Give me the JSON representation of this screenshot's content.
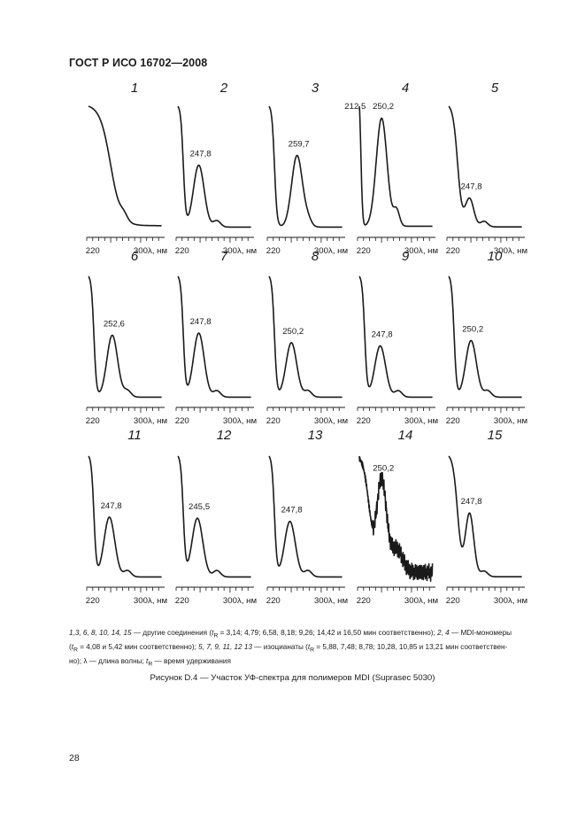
{
  "header": "ГОСТ Р ИСО 16702—2008",
  "axis": {
    "tick_label_220": "220",
    "tick_label_300": "300",
    "unit_label": "λ, нм"
  },
  "panels": [
    {
      "number": "1",
      "peaks": [],
      "shape": "decline"
    },
    {
      "number": "2",
      "peaks": [
        "247,8"
      ],
      "shape": "peak",
      "peak_pos": 247.8,
      "peak_level": 0.58
    },
    {
      "number": "3",
      "peaks": [
        "259,7"
      ],
      "shape": "peak",
      "peak_pos": 259.7,
      "peak_level": 0.67
    },
    {
      "number": "4",
      "peaks": [
        "212,5",
        "250,2"
      ],
      "shape": "double",
      "peak_pos": 250.2,
      "peak_level": 0.8
    },
    {
      "number": "5",
      "peaks": [
        "247,8"
      ],
      "shape": "decline_peak",
      "peak_pos": 247.8,
      "peak_level": 0.25
    },
    {
      "number": "6",
      "peaks": [
        "252,6"
      ],
      "shape": "peak",
      "peak_pos": 252.6,
      "peak_level": 0.58
    },
    {
      "number": "7",
      "peaks": [
        "247,8"
      ],
      "shape": "peak",
      "peak_pos": 247.8,
      "peak_level": 0.6
    },
    {
      "number": "8",
      "peaks": [
        "250,2"
      ],
      "shape": "peak",
      "peak_pos": 250.2,
      "peak_level": 0.51
    },
    {
      "number": "9",
      "peaks": [
        "247,8"
      ],
      "shape": "peak",
      "peak_pos": 247.8,
      "peak_level": 0.48
    },
    {
      "number": "10",
      "peaks": [
        "250,2"
      ],
      "shape": "peak",
      "peak_pos": 250.2,
      "peak_level": 0.53
    },
    {
      "number": "11",
      "peaks": [
        "247,8"
      ],
      "shape": "peak",
      "peak_pos": 247.8,
      "peak_level": 0.56
    },
    {
      "number": "12",
      "peaks": [
        "245,5"
      ],
      "shape": "peak",
      "peak_pos": 245.5,
      "peak_level": 0.55
    },
    {
      "number": "13",
      "peaks": [
        "247,8"
      ],
      "shape": "peak",
      "peak_pos": 247.8,
      "peak_level": 0.52
    },
    {
      "number": "14",
      "peaks": [
        "250,2"
      ],
      "shape": "noisy",
      "peak_pos": 250.2,
      "peak_level": 0.7
    },
    {
      "number": "15",
      "peaks": [
        "247,8"
      ],
      "shape": "decline_peak",
      "peak_pos": 247.8,
      "peak_level": 0.56
    }
  ],
  "caption": {
    "line1_italic_numbers": "1,3, 6, 8, 10, 14, 15",
    "line1_text": " — другие соединения (",
    "tr_symbol": "t",
    "tr_sub": "R",
    "line1_values": " = 3,14; 4,79; 6,58, 8,18; 9,26; 14,42 и 16,50 мин соответственно); ",
    "line1_italic_2": "2, 4",
    "line1_tail": " — MDI-мономеры",
    "line2_open": "(",
    "line2_values": " = 4,08 и 5,42 мин соответственно); ",
    "line2_italic": "5, 7, 9, 11, 12  13",
    "line2_text": " — изоцианаты (",
    "line2_values2": " = 5,88, 7,48; 8,78; 10,28, 10,85 и 13,21 мин соответствен-",
    "line3_text": "но); λ — длина волны; ",
    "line3_tail": " — время удерживания"
  },
  "figure_title": "Рисунок D.4 — Участок УФ-спектра для полимеров MDI (Suprasec 5030)",
  "page_number": "28"
}
